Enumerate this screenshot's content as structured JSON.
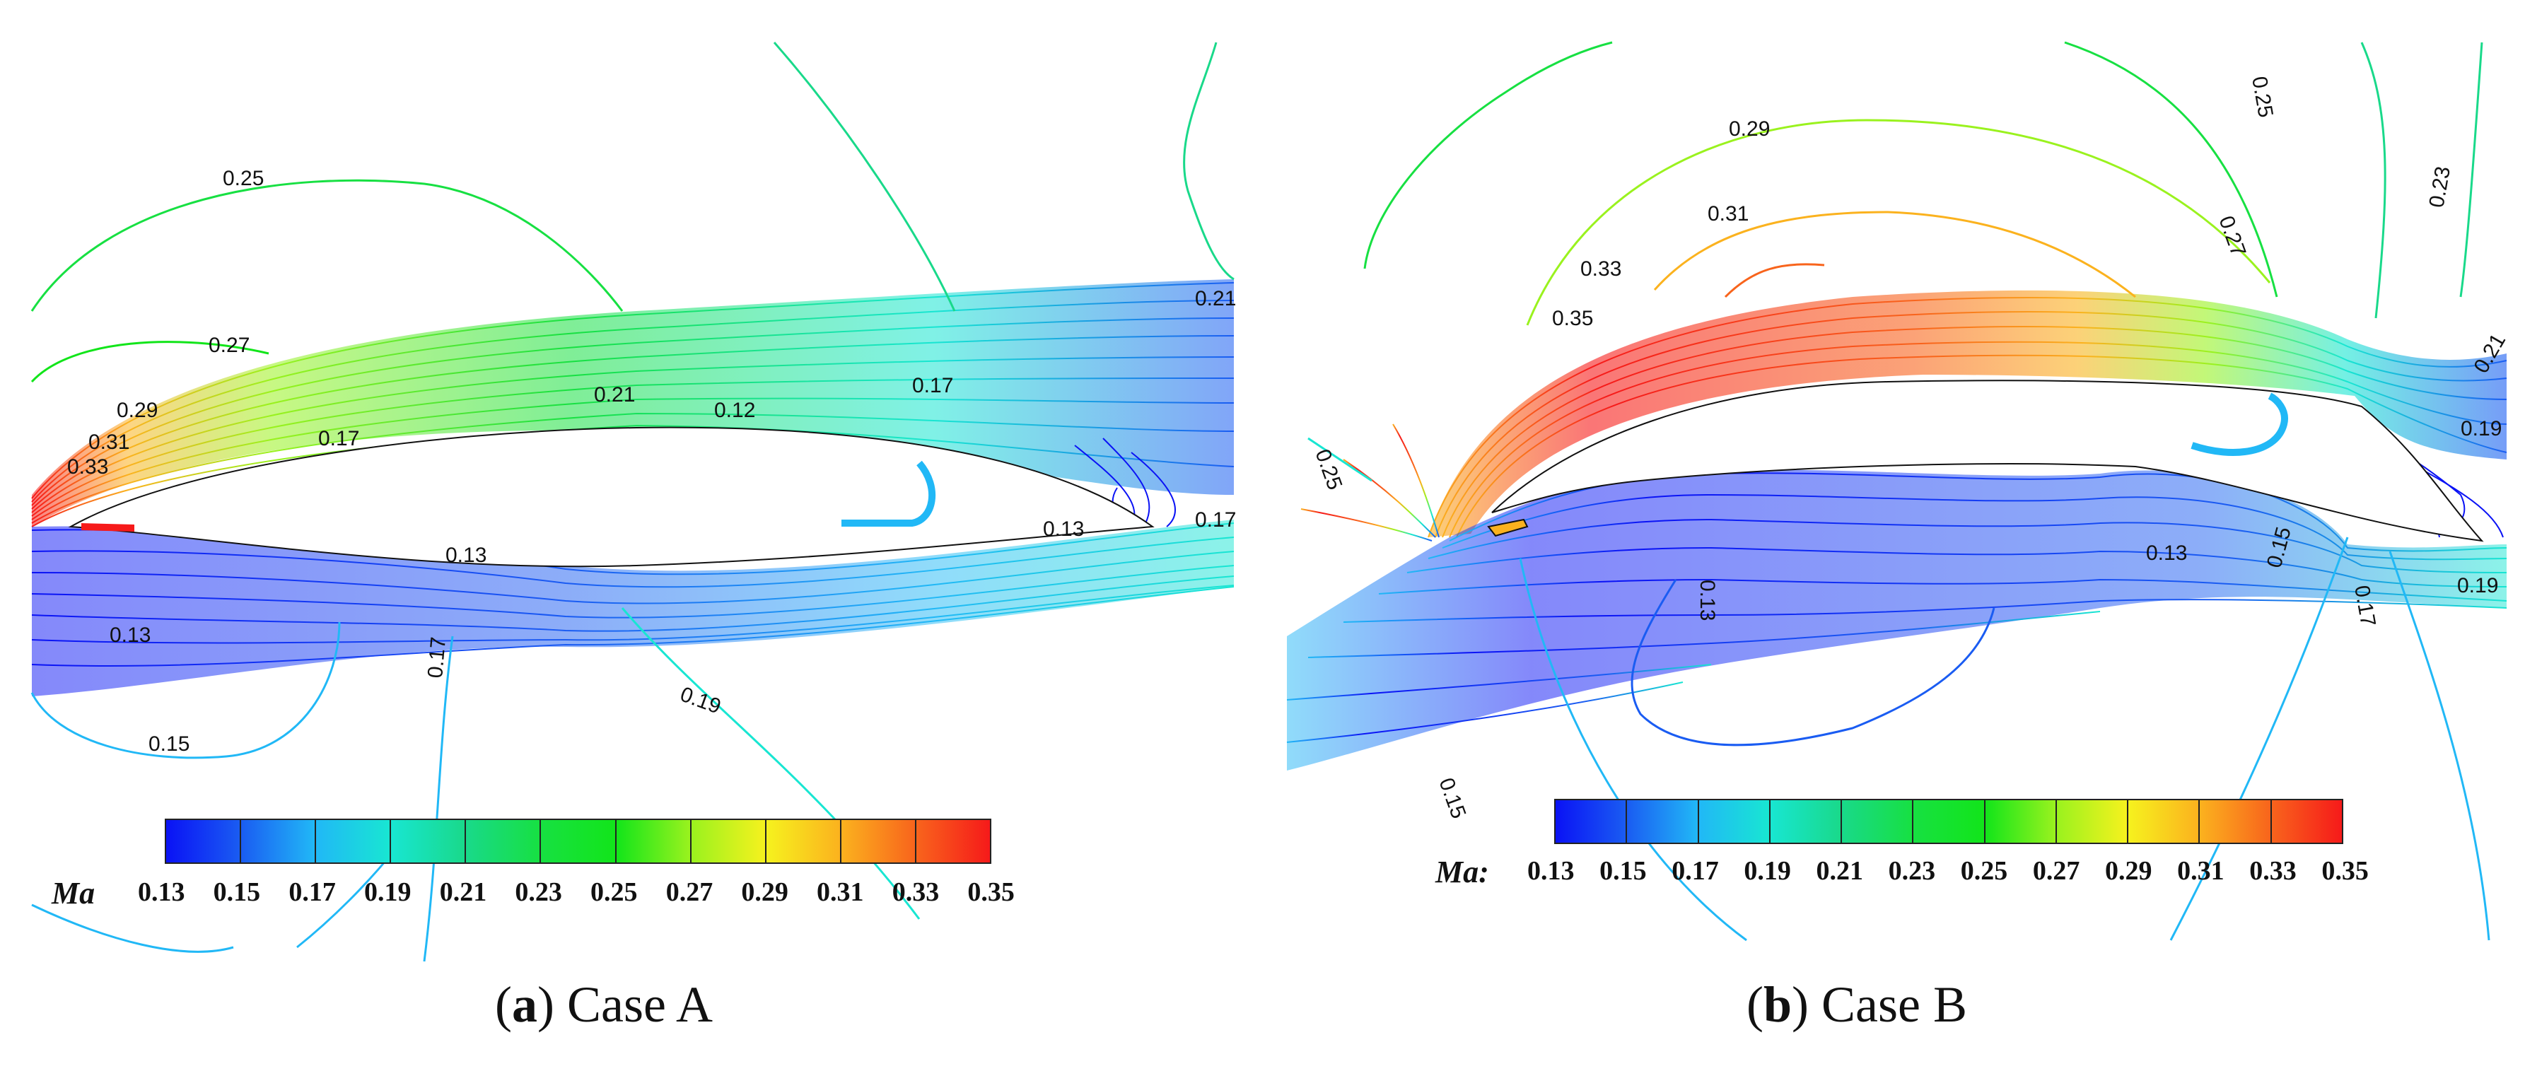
{
  "quantity_label": "Ma",
  "colorbar": {
    "ticks": [
      "0.13",
      "0.15",
      "0.17",
      "0.19",
      "0.21",
      "0.23",
      "0.25",
      "0.27",
      "0.29",
      "0.31",
      "0.33",
      "0.35"
    ],
    "colors": [
      "#0a12f5",
      "#1a5cf2",
      "#21b8f6",
      "#18e6d2",
      "#19d98a",
      "#17e042",
      "#12e51a",
      "#9af21e",
      "#f6f21e",
      "#fbb21e",
      "#f8641c",
      "#f61a1a"
    ]
  },
  "panels": [
    {
      "id": "a",
      "caption_letter": "a",
      "caption_text": "Case A",
      "title_suffix": "",
      "contour_labels": [
        "0.25",
        "0.21",
        "0.27",
        "0.21",
        "0.12",
        "0.17",
        "0.29",
        "0.31",
        "0.17",
        "0.33",
        "0.13",
        "0.17",
        "0.13",
        "0.13",
        "0.17",
        "0.19",
        "0.15"
      ]
    },
    {
      "id": "b",
      "caption_letter": "b",
      "caption_text": "Case B",
      "title_suffix": ":",
      "contour_labels": [
        "0.29",
        "0.25",
        "0.31",
        "0.27",
        "0.23",
        "0.33",
        "0.35",
        "0.21",
        "0.25",
        "0.19",
        "0.13",
        "0.13",
        "0.15",
        "0.17",
        "0.19",
        "0.15"
      ]
    }
  ]
}
